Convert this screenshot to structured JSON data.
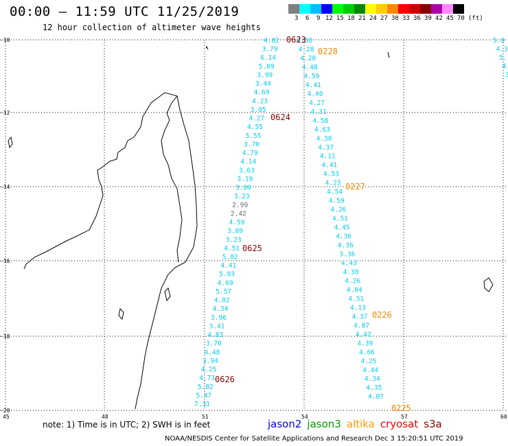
{
  "title": "00:00 – 11:59 UTC 11/25/2019",
  "subtitle": "12 hour collection of altimeter wave heights",
  "scale": {
    "labels": [
      "3",
      "6",
      "9",
      "12",
      "15",
      "18",
      "21",
      "24",
      "27",
      "30",
      "33",
      "36",
      "39",
      "42",
      "45",
      "70",
      "(ft)"
    ],
    "colors": [
      "#808080",
      "#00ffff",
      "#00bfff",
      "#0000ff",
      "#00ff00",
      "#00cc00",
      "#008800",
      "#ffff00",
      "#ffcc00",
      "#ff8800",
      "#ff0000",
      "#cc0000",
      "#880000",
      "#aa00aa",
      "#ff88ff",
      "#000000"
    ]
  },
  "axes": {
    "lat_labels": [
      "-10",
      "-12",
      "-14",
      "-16",
      "-18",
      "-20"
    ],
    "lon_labels": [
      "45",
      "48",
      "51",
      "54",
      "57",
      "60"
    ]
  },
  "colors": {
    "measurement": "#00ccee",
    "low_measurement": "#666666",
    "s3a_time": "#880000",
    "altika_time": "#ee8800"
  },
  "track1": {
    "values": [
      "4.82",
      "3.79",
      "6.14",
      "5.09",
      "3.99",
      "3.44",
      "4.69",
      "4.23",
      "3.05",
      "4.27",
      "4.55",
      "5.55",
      "3.70",
      "4.79",
      "4.14",
      "3.63",
      "3.19",
      "3.89",
      "3.23",
      "2.99",
      "2.42",
      "4.59",
      "3.89",
      "3.23",
      "4.51",
      "5.02",
      "4.41",
      "5.03",
      "4.69",
      "5.57",
      "4.02",
      "4.34",
      "3.96",
      "3.41",
      "4.83",
      "3.70",
      "4.48",
      "3.94",
      "4.25",
      "4.73",
      "5.82",
      "5.47",
      "7.31"
    ],
    "times": [
      "0623",
      "0624",
      "0625",
      "0626"
    ]
  },
  "track2": {
    "values": [
      "4.58",
      "4.28",
      "4.20",
      "4.48",
      "4.59",
      "4.41",
      "4.40",
      "4.27",
      "4.31",
      "4.58",
      "4.63",
      "4.30",
      "4.37",
      "4.11",
      "4.41",
      "4.53",
      "4.23",
      "4.54",
      "4.59",
      "4.26",
      "4.51",
      "4.45",
      "4.36",
      "4.36",
      "3.36",
      "4.43",
      "4.30",
      "4.26",
      "4.04",
      "4.51",
      "4.13",
      "4.37",
      "4.87",
      "4.42",
      "4.39",
      "4.66",
      "4.25",
      "4.44",
      "4.34",
      "4.35",
      "4.07"
    ],
    "times": [
      "0228",
      "0227",
      "0226",
      "0225"
    ]
  },
  "track3": {
    "values": [
      "5.0",
      "4.3",
      "5.",
      "4.",
      "3"
    ]
  },
  "note": "note: 1) Time is in UTC; 2) SWH is in feet",
  "legend": [
    {
      "name": "jason2",
      "color": "#0000ee"
    },
    {
      "name": "jason3",
      "color": "#009900"
    },
    {
      "name": "altika",
      "color": "#ff9900"
    },
    {
      "name": "cryosat",
      "color": "#ee0000"
    },
    {
      "name": "s3a",
      "color": "#880000"
    }
  ],
  "credit": "NOAA/NESDIS Center for Satellite Applications and Research    Dec  3 15:20:51 UTC 2019"
}
